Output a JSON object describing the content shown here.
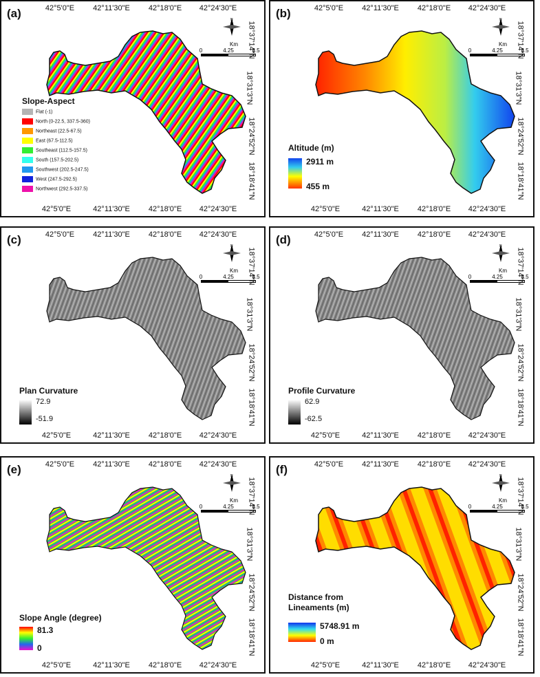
{
  "axes": {
    "x_ticks": [
      "42°5'0\"E",
      "42°11'30\"E",
      "42°18'0\"E",
      "42°24'30\"E"
    ],
    "y_ticks": [
      "18°37'14\"N",
      "18°31'3\"N",
      "18°24'52\"N",
      "18°18'41\"N"
    ]
  },
  "scalebar": {
    "unit": "Km",
    "ticks": [
      "0",
      "4.25",
      "8.5"
    ],
    "north": "N"
  },
  "panels": [
    {
      "letter": "(a)",
      "legend_title": "Slope-Aspect",
      "classes": [
        {
          "label": "Flat (-1)",
          "color": "#b4b4b4"
        },
        {
          "label": "North (0-22.5, 337.5-360)",
          "color": "#ff0000"
        },
        {
          "label": "Northeast (22.5-67.5)",
          "color": "#ff9900"
        },
        {
          "label": "East (67.5-112.5)",
          "color": "#ffff00"
        },
        {
          "label": "Southeast (112.5-157.5)",
          "color": "#33ee33"
        },
        {
          "label": "South (157.5-202.5)",
          "color": "#33ffee"
        },
        {
          "label": "Southwest (202.5-247.5)",
          "color": "#2299ee"
        },
        {
          "label": "West (247.5-292.5)",
          "color": "#1122dd"
        },
        {
          "label": "Northwest (292.5-337.5)",
          "color": "#ee11aa"
        }
      ]
    },
    {
      "letter": "(b)",
      "legend_title": "Altitude (m)",
      "max_label": "2911 m",
      "min_label": "455 m",
      "ramp": [
        "#1144ee",
        "#33ccee",
        "#ffff00",
        "#ff3300"
      ]
    },
    {
      "letter": "(c)",
      "legend_title": "Plan Curvature",
      "max_label": "72.9",
      "min_label": "-51.9",
      "ramp": [
        "#ffffff",
        "#000000"
      ]
    },
    {
      "letter": "(d)",
      "legend_title": "Profile Curvature",
      "max_label": "62.9",
      "min_label": "-62.5",
      "ramp": [
        "#ffffff",
        "#000000"
      ]
    },
    {
      "letter": "(e)",
      "legend_title": "Slope Angle (degree)",
      "max_label": "81.3",
      "min_label": "0",
      "ramp": [
        "#ff0000",
        "#ffff00",
        "#33ee33",
        "#2266ee",
        "#ee11cc"
      ]
    },
    {
      "letter": "(f)",
      "legend_title_line1": "Distance from",
      "legend_title_line2": "Lineaments (m)",
      "max_label": "5748.91 m",
      "min_label": "0 m",
      "ramp": [
        "#1133ee",
        "#33ddee",
        "#ffff00",
        "#ff2200"
      ]
    }
  ]
}
